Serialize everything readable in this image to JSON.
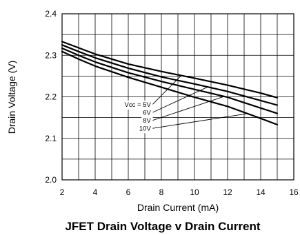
{
  "chart_data": {
    "type": "line",
    "title": "JFET Drain Voltage v Drain Current",
    "xlabel": "Drain Current (mA)",
    "ylabel": "Drain Voltage (V)",
    "xlim": [
      2,
      16
    ],
    "ylim": [
      2.0,
      2.4
    ],
    "xticks": [
      "2",
      "4",
      "6",
      "8",
      "10",
      "12",
      "14",
      "16"
    ],
    "yticks": [
      "2.0",
      "2.1",
      "2.2",
      "2.3",
      "2.4"
    ],
    "grid": true,
    "series": [
      {
        "name": "Vcc = 5V",
        "x": [
          2,
          3,
          4,
          6,
          8,
          10,
          12,
          14,
          15
        ],
        "y": [
          2.333,
          2.318,
          2.303,
          2.279,
          2.261,
          2.245,
          2.228,
          2.209,
          2.198
        ]
      },
      {
        "name": "6V",
        "x": [
          2,
          3,
          4,
          6,
          8,
          10,
          12,
          14,
          15
        ],
        "y": [
          2.325,
          2.309,
          2.294,
          2.269,
          2.248,
          2.231,
          2.213,
          2.191,
          2.18
        ]
      },
      {
        "name": "8V",
        "x": [
          2,
          3,
          4,
          6,
          8,
          10,
          12,
          14,
          15
        ],
        "y": [
          2.317,
          2.3,
          2.284,
          2.258,
          2.237,
          2.218,
          2.199,
          2.173,
          2.16
        ]
      },
      {
        "name": "10V",
        "x": [
          2,
          3,
          4,
          6,
          8,
          10,
          12,
          14,
          15
        ],
        "y": [
          2.309,
          2.291,
          2.274,
          2.247,
          2.223,
          2.199,
          2.177,
          2.148,
          2.133
        ]
      }
    ],
    "annotations": [
      {
        "text": "Vcc = 5V",
        "series": 0,
        "point_x": 9.2,
        "label_x": 7.45,
        "label_y": 2.181
      },
      {
        "text": "6V",
        "series": 1,
        "point_x": 10.8,
        "label_x": 7.45,
        "label_y": 2.162
      },
      {
        "text": "8V",
        "series": 2,
        "point_x": 11.8,
        "label_x": 7.45,
        "label_y": 2.143
      },
      {
        "text": "10V",
        "series": 3,
        "point_x": 13.2,
        "label_x": 7.45,
        "label_y": 2.124
      }
    ]
  }
}
